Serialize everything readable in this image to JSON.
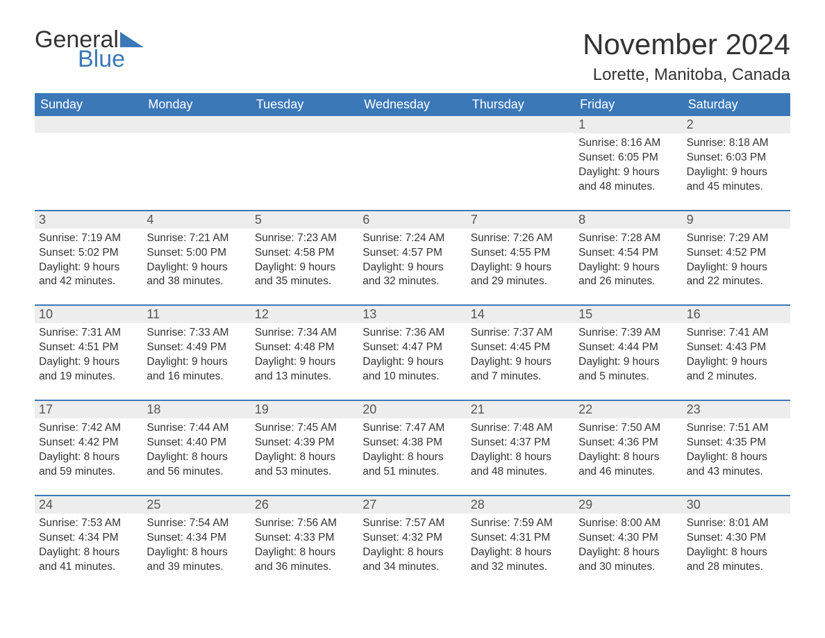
{
  "brand": {
    "word1": "General",
    "word2": "Blue"
  },
  "title": "November 2024",
  "location": "Lorette, Manitoba, Canada",
  "colors": {
    "header_bg": "#3b78b8",
    "header_fg": "#ffffff",
    "daynum_bg": "#ededed",
    "text": "#333333",
    "divider": "#3b78b8",
    "page_bg": "#ffffff"
  },
  "day_labels": [
    "Sunday",
    "Monday",
    "Tuesday",
    "Wednesday",
    "Thursday",
    "Friday",
    "Saturday"
  ],
  "weeks": [
    [
      null,
      null,
      null,
      null,
      null,
      {
        "n": "1",
        "sunrise": "Sunrise: 8:16 AM",
        "sunset": "Sunset: 6:05 PM",
        "dl1": "Daylight: 9 hours",
        "dl2": "and 48 minutes."
      },
      {
        "n": "2",
        "sunrise": "Sunrise: 8:18 AM",
        "sunset": "Sunset: 6:03 PM",
        "dl1": "Daylight: 9 hours",
        "dl2": "and 45 minutes."
      }
    ],
    [
      {
        "n": "3",
        "sunrise": "Sunrise: 7:19 AM",
        "sunset": "Sunset: 5:02 PM",
        "dl1": "Daylight: 9 hours",
        "dl2": "and 42 minutes."
      },
      {
        "n": "4",
        "sunrise": "Sunrise: 7:21 AM",
        "sunset": "Sunset: 5:00 PM",
        "dl1": "Daylight: 9 hours",
        "dl2": "and 38 minutes."
      },
      {
        "n": "5",
        "sunrise": "Sunrise: 7:23 AM",
        "sunset": "Sunset: 4:58 PM",
        "dl1": "Daylight: 9 hours",
        "dl2": "and 35 minutes."
      },
      {
        "n": "6",
        "sunrise": "Sunrise: 7:24 AM",
        "sunset": "Sunset: 4:57 PM",
        "dl1": "Daylight: 9 hours",
        "dl2": "and 32 minutes."
      },
      {
        "n": "7",
        "sunrise": "Sunrise: 7:26 AM",
        "sunset": "Sunset: 4:55 PM",
        "dl1": "Daylight: 9 hours",
        "dl2": "and 29 minutes."
      },
      {
        "n": "8",
        "sunrise": "Sunrise: 7:28 AM",
        "sunset": "Sunset: 4:54 PM",
        "dl1": "Daylight: 9 hours",
        "dl2": "and 26 minutes."
      },
      {
        "n": "9",
        "sunrise": "Sunrise: 7:29 AM",
        "sunset": "Sunset: 4:52 PM",
        "dl1": "Daylight: 9 hours",
        "dl2": "and 22 minutes."
      }
    ],
    [
      {
        "n": "10",
        "sunrise": "Sunrise: 7:31 AM",
        "sunset": "Sunset: 4:51 PM",
        "dl1": "Daylight: 9 hours",
        "dl2": "and 19 minutes."
      },
      {
        "n": "11",
        "sunrise": "Sunrise: 7:33 AM",
        "sunset": "Sunset: 4:49 PM",
        "dl1": "Daylight: 9 hours",
        "dl2": "and 16 minutes."
      },
      {
        "n": "12",
        "sunrise": "Sunrise: 7:34 AM",
        "sunset": "Sunset: 4:48 PM",
        "dl1": "Daylight: 9 hours",
        "dl2": "and 13 minutes."
      },
      {
        "n": "13",
        "sunrise": "Sunrise: 7:36 AM",
        "sunset": "Sunset: 4:47 PM",
        "dl1": "Daylight: 9 hours",
        "dl2": "and 10 minutes."
      },
      {
        "n": "14",
        "sunrise": "Sunrise: 7:37 AM",
        "sunset": "Sunset: 4:45 PM",
        "dl1": "Daylight: 9 hours",
        "dl2": "and 7 minutes."
      },
      {
        "n": "15",
        "sunrise": "Sunrise: 7:39 AM",
        "sunset": "Sunset: 4:44 PM",
        "dl1": "Daylight: 9 hours",
        "dl2": "and 5 minutes."
      },
      {
        "n": "16",
        "sunrise": "Sunrise: 7:41 AM",
        "sunset": "Sunset: 4:43 PM",
        "dl1": "Daylight: 9 hours",
        "dl2": "and 2 minutes."
      }
    ],
    [
      {
        "n": "17",
        "sunrise": "Sunrise: 7:42 AM",
        "sunset": "Sunset: 4:42 PM",
        "dl1": "Daylight: 8 hours",
        "dl2": "and 59 minutes."
      },
      {
        "n": "18",
        "sunrise": "Sunrise: 7:44 AM",
        "sunset": "Sunset: 4:40 PM",
        "dl1": "Daylight: 8 hours",
        "dl2": "and 56 minutes."
      },
      {
        "n": "19",
        "sunrise": "Sunrise: 7:45 AM",
        "sunset": "Sunset: 4:39 PM",
        "dl1": "Daylight: 8 hours",
        "dl2": "and 53 minutes."
      },
      {
        "n": "20",
        "sunrise": "Sunrise: 7:47 AM",
        "sunset": "Sunset: 4:38 PM",
        "dl1": "Daylight: 8 hours",
        "dl2": "and 51 minutes."
      },
      {
        "n": "21",
        "sunrise": "Sunrise: 7:48 AM",
        "sunset": "Sunset: 4:37 PM",
        "dl1": "Daylight: 8 hours",
        "dl2": "and 48 minutes."
      },
      {
        "n": "22",
        "sunrise": "Sunrise: 7:50 AM",
        "sunset": "Sunset: 4:36 PM",
        "dl1": "Daylight: 8 hours",
        "dl2": "and 46 minutes."
      },
      {
        "n": "23",
        "sunrise": "Sunrise: 7:51 AM",
        "sunset": "Sunset: 4:35 PM",
        "dl1": "Daylight: 8 hours",
        "dl2": "and 43 minutes."
      }
    ],
    [
      {
        "n": "24",
        "sunrise": "Sunrise: 7:53 AM",
        "sunset": "Sunset: 4:34 PM",
        "dl1": "Daylight: 8 hours",
        "dl2": "and 41 minutes."
      },
      {
        "n": "25",
        "sunrise": "Sunrise: 7:54 AM",
        "sunset": "Sunset: 4:34 PM",
        "dl1": "Daylight: 8 hours",
        "dl2": "and 39 minutes."
      },
      {
        "n": "26",
        "sunrise": "Sunrise: 7:56 AM",
        "sunset": "Sunset: 4:33 PM",
        "dl1": "Daylight: 8 hours",
        "dl2": "and 36 minutes."
      },
      {
        "n": "27",
        "sunrise": "Sunrise: 7:57 AM",
        "sunset": "Sunset: 4:32 PM",
        "dl1": "Daylight: 8 hours",
        "dl2": "and 34 minutes."
      },
      {
        "n": "28",
        "sunrise": "Sunrise: 7:59 AM",
        "sunset": "Sunset: 4:31 PM",
        "dl1": "Daylight: 8 hours",
        "dl2": "and 32 minutes."
      },
      {
        "n": "29",
        "sunrise": "Sunrise: 8:00 AM",
        "sunset": "Sunset: 4:30 PM",
        "dl1": "Daylight: 8 hours",
        "dl2": "and 30 minutes."
      },
      {
        "n": "30",
        "sunrise": "Sunrise: 8:01 AM",
        "sunset": "Sunset: 4:30 PM",
        "dl1": "Daylight: 8 hours",
        "dl2": "and 28 minutes."
      }
    ]
  ]
}
